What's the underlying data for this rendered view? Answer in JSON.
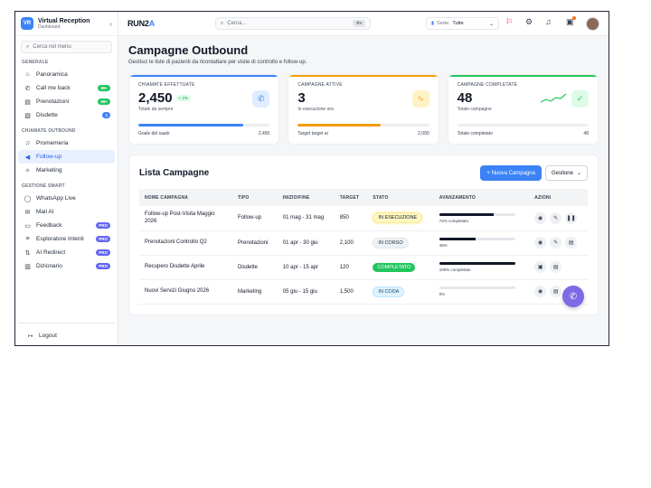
{
  "brand": {
    "logo": "VR",
    "title": "Virtual Reception",
    "subtitle": "Dashboard"
  },
  "sidebar": {
    "search_placeholder": "Cerca nel menu",
    "sections": [
      {
        "title": "GENERALE",
        "items": [
          {
            "label": "Panoramica",
            "icon": "home-icon"
          },
          {
            "label": "Call me back",
            "icon": "phone-icon",
            "badge": "99+"
          },
          {
            "label": "Prenotazioni",
            "icon": "calendar-icon",
            "badge": "99+"
          },
          {
            "label": "Disdette",
            "icon": "calendar-x-icon",
            "badge": "1"
          }
        ]
      },
      {
        "title": "CHIAMATE OUTBOUND",
        "items": [
          {
            "label": "Promemeria",
            "icon": "bell-icon"
          },
          {
            "label": "Follow-up",
            "icon": "megaphone-icon",
            "active": true
          },
          {
            "label": "Marketing",
            "icon": "sparkle-icon"
          }
        ]
      },
      {
        "title": "GESTIONE SMART",
        "items": [
          {
            "label": "WhatsApp Live",
            "icon": "whatsapp-icon"
          },
          {
            "label": "Mail AI",
            "icon": "mail-icon"
          },
          {
            "label": "Feedback",
            "icon": "message-icon",
            "badge": "PRO"
          },
          {
            "label": "Esploratore Intenti",
            "icon": "intent-icon",
            "badge": "PRO"
          },
          {
            "label": "AI Redirect",
            "icon": "redirect-icon",
            "badge": "PRO"
          },
          {
            "label": "Dizionario",
            "icon": "book-icon",
            "badge": "PRO"
          }
        ]
      }
    ],
    "logout": "Logout"
  },
  "topbar": {
    "logo_main": "RUN2",
    "logo_accent": "A",
    "search_placeholder": "Cerca...",
    "search_shortcut": "⌘K",
    "sede_label": "Sede:",
    "sede_value": "Tutte"
  },
  "page": {
    "title": "Campagne Outbound",
    "subtitle": "Gestisci le liste di pazienti da ricontattare per visite di controllo e follow-up."
  },
  "stats": [
    {
      "label": "CHIAMATE EFFETTUATE",
      "value": "2,450",
      "delta": "+ 2%",
      "caption": "Totale da sempre",
      "foot_left": "Goals del saalo",
      "foot_right": "2,450",
      "progress": 0.8,
      "color": "#3b82f6",
      "icon": "phone-icon"
    },
    {
      "label": "CAMPAGNE ATTIVE",
      "value": "3",
      "caption": "In esecuzione ora",
      "foot_left": "Target target ai",
      "foot_right": "2,000",
      "progress": 0.63,
      "color": "#f59e0b",
      "icon": "activity-icon"
    },
    {
      "label": "CAMPAGNE COMPLETATE",
      "value": "48",
      "caption": "Totale campagne",
      "foot_left": "Totale completato",
      "foot_right": "48",
      "progress": 0,
      "color": "#22c55e",
      "icon": "check-circle-icon"
    }
  ],
  "list": {
    "title": "Lista Campagne",
    "new_button": "+ Nuova Campagna",
    "manage_button": "Gestione",
    "columns": [
      "NOME CAMPAGNA",
      "TIPO",
      "INIZIO/FINE",
      "TARGET",
      "STATO",
      "AVANZAMENTO",
      "AZIONI"
    ],
    "rows": [
      {
        "name": "Follow-up Post-Visita Maggio 2026",
        "type": "Follow-up",
        "dates": "01 mag - 31 mag",
        "target": "850",
        "status": "IN ESECUZIONE",
        "status_kind": "run",
        "progress": 0.72,
        "progress_text": "72% completato"
      },
      {
        "name": "Prenotazioni Controllo Q2",
        "type": "Prenotazioni",
        "dates": "01 apr - 30 giu",
        "target": "2,100",
        "status": "IN CORSO",
        "status_kind": "corso",
        "progress": 0.48,
        "progress_text": "48%"
      },
      {
        "name": "Recupero Disdette Aprile",
        "type": "Disdette",
        "dates": "10 apr - 15 apr",
        "target": "120",
        "status": "COMPLETATO",
        "status_kind": "compl",
        "progress": 1.0,
        "progress_text": "100% completato"
      },
      {
        "name": "Nuovi Servizi Giugno 2026",
        "type": "Marketing",
        "dates": "05 giu - 15 giu",
        "target": "1,500",
        "status": "IN CODA",
        "status_kind": "coda",
        "progress": 0,
        "progress_text": "0%"
      }
    ]
  }
}
